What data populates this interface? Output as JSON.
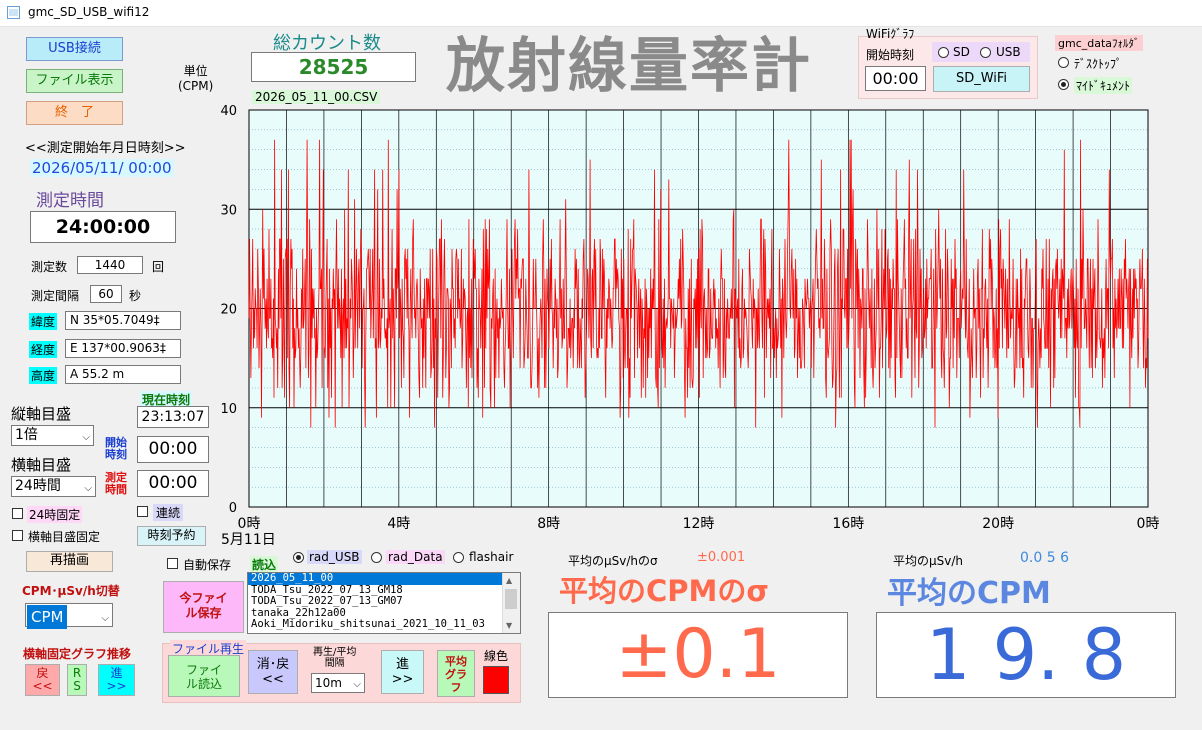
{
  "window": {
    "title": "gmc_SD_USB_wifi12"
  },
  "buttons": {
    "usb": "USB接続",
    "file_show": "ファイル表示",
    "exit": "終　了",
    "redraw": "再描画",
    "time_reserve": "時刻予約",
    "sd_wifi": "SD_WiFi",
    "save_today": "今ファイル保存",
    "file_load": "ファイル読込",
    "erase_back": "消･戻\n<<",
    "forward": "進\n>>",
    "avg_graph": "平均グラフ",
    "nav_back": "戻\n<<",
    "nav_rs": "R\nS",
    "nav_fwd": "進\n>>"
  },
  "labels": {
    "start_datetime_header": "<<測定開始年月日時刻>>",
    "start_datetime": "2026/05/11/ 00:00",
    "measure_time_label": "測定時間",
    "measure_time": "24:00:00",
    "count_label": "測定数",
    "count_value": "1440",
    "count_unit": "回",
    "interval_label": "測定間隔",
    "interval_value": "60",
    "interval_unit": "秒",
    "lat_label": "緯度",
    "lat_value": "N  35*05.7049‡",
    "lon_label": "経度",
    "lon_value": "E 137*00.9063‡",
    "alt_label": "高度",
    "alt_value": "A 55.2 m",
    "current_time_label": "現在時刻",
    "current_time": "23:13:07",
    "vaxis_label": "縦軸目盛",
    "vaxis_value": "1倍",
    "haxis_label": "横軸目盛",
    "haxis_value": "24時間",
    "start_time_label": "開始時刻",
    "start_time_value": "00:00",
    "measure_label": "測定時間",
    "measure_value": "00:00",
    "fixed24_label": "24時固定",
    "continuous_label": "連続",
    "haxis_fixed_label": "横軸目盛固定",
    "cpm_switch_label": "CPM･μSv/h切替",
    "cpm_switch_value": "CPM",
    "nav_title": "横軸固定グラフ推移",
    "total_count_label": "総カウント数",
    "total_count": "28525",
    "unit_label": "単位\n(CPM)",
    "filename": "2026_05_11_00.CSV",
    "app_title": "放射線量率計",
    "wifi_graph_label": "WiFiｸﾞﾗﾌ",
    "wifi_start_label": "開始時刻",
    "wifi_start_value": "00:00",
    "radio_sd": "SD",
    "radio_usb": "USB",
    "folder_label": "gmc_dataﾌｫﾙﾀﾞ",
    "radio_desktop": "ﾃﾞｽｸﾄｯﾌﾟ",
    "radio_mydocs": "ﾏｲﾄﾞｷｭﾒﾝﾄ",
    "autosave_label": "自動保存",
    "read_label": "読込",
    "rad_usb": "rad_USB",
    "rad_data": "rad_Data",
    "flashair": "flashair",
    "file_play_label": "ファイル再生",
    "play_interval_label": "再生/平均\n間隔",
    "play_interval_value": "10m",
    "line_color_label": "線色",
    "avg_usvh_sigma_label": "平均のμSv/hのσ",
    "avg_usvh_sigma_value": "±0.001",
    "avg_cpm_sigma_title": "平均のCPMのσ",
    "avg_cpm_sigma_value": "±0.1",
    "avg_usvh_label": "平均のμSv/h",
    "avg_usvh_value": "0.0 5 6",
    "avg_cpm_title": "平均のCPM",
    "avg_cpm_value": "1 9. 8"
  },
  "file_list": [
    "2026_05_11_00",
    "TODA_Tsu_2022_07_13_GM18",
    "TODA_Tsu_2022_07_13_GM07",
    "tanaka_22h12a00",
    "Aoki_Midoriku_shitsunai_2021_10_11_03"
  ],
  "colors": {
    "line": "#ff0000",
    "plot_bg": "#e8fcfc",
    "sigma_accent": "#ff6a4d",
    "cpm_accent": "#5b87e0"
  },
  "chart_data": {
    "type": "line",
    "title": "",
    "xlabel": "",
    "ylabel": "単位 (CPM)",
    "ylim": [
      0,
      40
    ],
    "xlim": [
      0,
      24
    ],
    "y_ticks": [
      "0",
      "10",
      "20",
      "30",
      "40"
    ],
    "x_ticks": [
      "0時",
      "4時",
      "8時",
      "12時",
      "16時",
      "20時",
      "0時"
    ],
    "x_sublabel": "5月11日",
    "series": [
      {
        "seed": 7,
        "mean": 19.8,
        "count": 1440,
        "ymin": 8,
        "ymax": 38
      }
    ]
  }
}
